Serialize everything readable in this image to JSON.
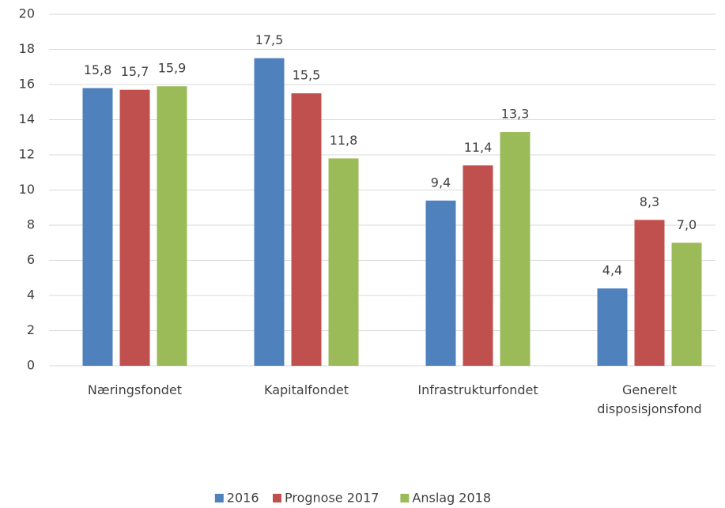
{
  "chart_data": {
    "type": "bar",
    "categories": [
      "Næringsfondet",
      "Kapitalfondet",
      "Infrastrukturfondet",
      "Generelt disposisjonsfond"
    ],
    "series": [
      {
        "name": "2016",
        "color": "#4f81bd",
        "values": [
          15.8,
          17.5,
          9.4,
          4.4
        ],
        "value_labels": [
          "15,8",
          "17,5",
          "9,4",
          "4,4"
        ]
      },
      {
        "name": "Prognose 2017",
        "color": "#c0504d",
        "values": [
          15.7,
          15.5,
          11.4,
          8.3
        ],
        "value_labels": [
          "15,7",
          "15,5",
          "11,4",
          "8,3"
        ]
      },
      {
        "name": "Anslag 2018",
        "color": "#9bbb59",
        "values": [
          15.9,
          11.8,
          13.3,
          7.0
        ],
        "value_labels": [
          "15,9",
          "11,8",
          "13,3",
          "7,0"
        ]
      }
    ],
    "ylim": [
      0,
      20
    ],
    "yticks": [
      0,
      2,
      4,
      6,
      8,
      10,
      12,
      14,
      16,
      18,
      20
    ],
    "grid": true,
    "legend": "bottom"
  }
}
